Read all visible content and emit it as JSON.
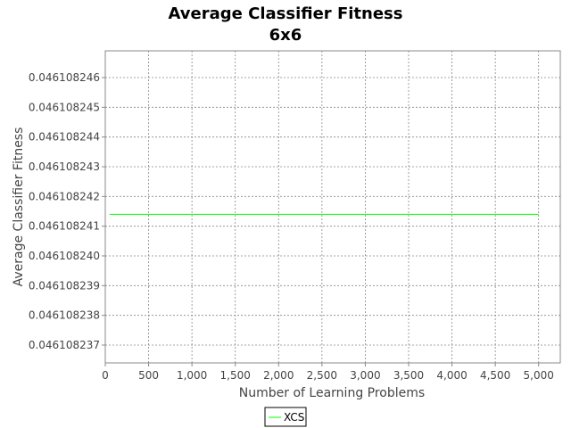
{
  "chart_data": {
    "type": "line",
    "title": "Average Classifier Fitness",
    "subtitle": "6x6",
    "xlabel": "Number of Learning Problems",
    "ylabel": "Average Classifier Fitness",
    "xlim": [
      0,
      5250
    ],
    "ylim": [
      0.0461082364,
      0.0461082469
    ],
    "xticks": [
      0,
      500,
      1000,
      1500,
      2000,
      2500,
      3000,
      3500,
      4000,
      4500,
      5000
    ],
    "xtick_labels": [
      "0",
      "500",
      "1,000",
      "1,500",
      "2,000",
      "2,500",
      "3,000",
      "3,500",
      "4,000",
      "4,500",
      "5,000"
    ],
    "yticks": [
      0.046108237,
      0.046108238,
      0.046108239,
      0.04610824,
      0.046108241,
      0.046108242,
      0.046108243,
      0.046108244,
      0.046108245,
      0.046108246
    ],
    "ytick_labels": [
      "0.046108237",
      "0.046108238",
      "0.046108239",
      "0.046108240",
      "0.046108241",
      "0.046108242",
      "0.046108243",
      "0.046108244",
      "0.046108245",
      "0.046108246"
    ],
    "grid": true,
    "legend_position": "bottom-center",
    "series": [
      {
        "name": "XCS",
        "color": "#00ff00",
        "x": [
          50,
          5000
        ],
        "y": [
          0.0461082414,
          0.0461082414
        ]
      }
    ]
  }
}
